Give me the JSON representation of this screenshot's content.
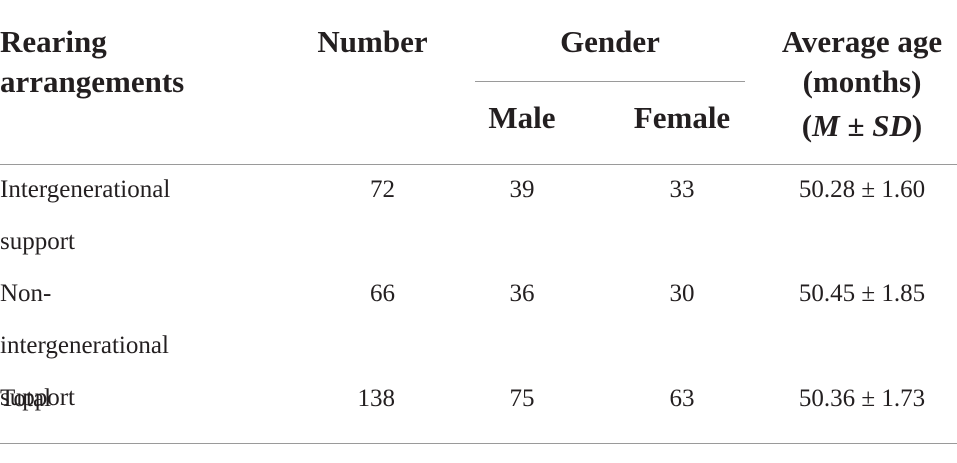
{
  "table": {
    "header": {
      "rearing": "Rearing arrangements",
      "number": "Number",
      "gender": "Gender",
      "male": "Male",
      "female": "Female",
      "age": "Average age (months)",
      "age_stat": [
        "(",
        "M",
        "±",
        "SD",
        ")"
      ]
    },
    "rows": [
      [
        "Intergenerational support",
        72,
        39,
        33,
        "50.28 ± 1.60"
      ],
      [
        "Non-intergenerational support",
        66,
        36,
        30,
        "50.45 ± 1.85"
      ],
      [
        "Total",
        138,
        75,
        63,
        "50.36 ± 1.73"
      ]
    ]
  }
}
